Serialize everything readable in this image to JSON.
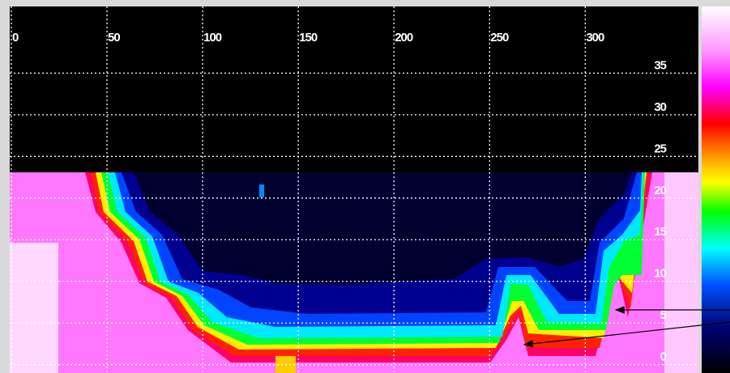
{
  "chart_data": {
    "type": "heatmap",
    "xlim": [
      0,
      360
    ],
    "xticks": [
      0,
      50,
      100,
      150,
      200,
      250,
      300
    ],
    "ylim": [
      -1,
      43
    ],
    "yticks": [
      0,
      5,
      10,
      15,
      20,
      25,
      30,
      35
    ],
    "grid": true
  }
}
